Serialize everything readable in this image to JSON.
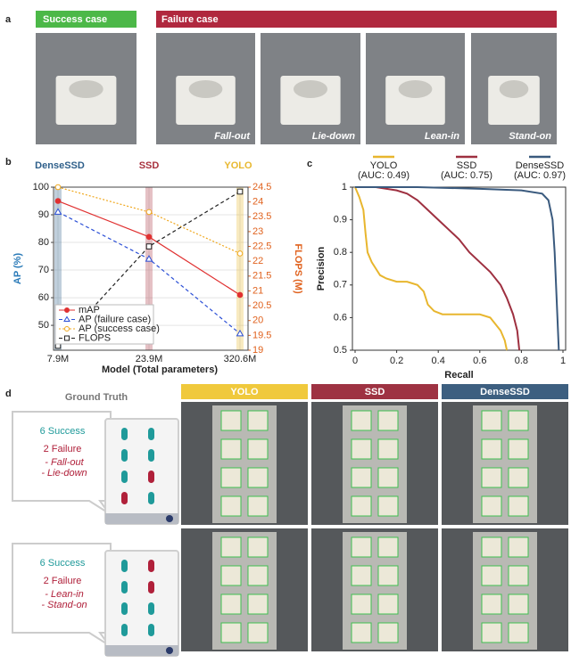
{
  "panel_a": {
    "label": "a",
    "success_label": "Success case",
    "failure_label": "Failure case",
    "captions": [
      "Fall-out",
      "Lie-down",
      "Lean-in",
      "Stand-on"
    ]
  },
  "panel_b_label": "b",
  "panel_c_label": "c",
  "chart_data": [
    {
      "type": "line",
      "xlabel": "Model (Total parameters)",
      "ylabel": "AP (%)",
      "ylabel_color": "#2a7ab8",
      "y2label": "FLOPS (M)",
      "y2label_color": "#e0621e",
      "categories": [
        "7.9M",
        "23.9M",
        "320.6M"
      ],
      "ylim": [
        41,
        100
      ],
      "yticks": [
        50,
        60,
        70,
        80,
        90,
        100
      ],
      "y2lim": [
        19,
        24.5
      ],
      "y2ticks": [
        19,
        19.5,
        20,
        20.5,
        21,
        21.5,
        22,
        22.5,
        23,
        23.5,
        24,
        24.5
      ],
      "grid": true,
      "legend": "lower left",
      "column_labels": [
        {
          "text": "DenseSSD",
          "color": "#2e5f8a"
        },
        {
          "text": "SSD",
          "color": "#a8323e"
        },
        {
          "text": "YOLO",
          "color": "#e8b830"
        }
      ],
      "series": [
        {
          "name": "mAP",
          "color": "#e03131",
          "marker": "circle",
          "dash": "solid",
          "values": [
            95,
            82,
            61
          ]
        },
        {
          "name": "AP (failure case)",
          "color": "#2b4fd6",
          "marker": "triangle",
          "dash": "dashed",
          "values": [
            91,
            74,
            47
          ]
        },
        {
          "name": "AP (success case)",
          "color": "#f0a81e",
          "marker": "circle-open",
          "dash": "dotted",
          "values": [
            100,
            91,
            76
          ]
        },
        {
          "name": "FLOPS",
          "color": "#222222",
          "marker": "square-open",
          "dash": "dashed",
          "axis": "y2",
          "values": [
            19.15,
            22.5,
            24.35
          ]
        }
      ]
    },
    {
      "type": "line",
      "xlabel": "Recall",
      "ylabel": "Precision",
      "xlim": [
        0,
        1
      ],
      "xticks": [
        0,
        0.2,
        0.4,
        0.6,
        0.8,
        1
      ],
      "ylim": [
        0.5,
        1
      ],
      "yticks": [
        0.5,
        0.6,
        0.7,
        0.8,
        0.9,
        1
      ],
      "legend": "top",
      "series": [
        {
          "name": "YOLO",
          "note": "(AUC: 0.49)",
          "color": "#e8b62e",
          "x": [
            0,
            0.02,
            0.04,
            0.05,
            0.06,
            0.08,
            0.1,
            0.12,
            0.15,
            0.2,
            0.25,
            0.3,
            0.33,
            0.35,
            0.38,
            0.42,
            0.5,
            0.6,
            0.65,
            0.7,
            0.72,
            0.73
          ],
          "values": [
            1,
            0.97,
            0.93,
            0.86,
            0.8,
            0.77,
            0.75,
            0.73,
            0.72,
            0.71,
            0.71,
            0.7,
            0.68,
            0.64,
            0.62,
            0.61,
            0.61,
            0.61,
            0.6,
            0.56,
            0.53,
            0.5
          ]
        },
        {
          "name": "SSD",
          "note": "(AUC: 0.75)",
          "color": "#9e3040",
          "x": [
            0,
            0.1,
            0.2,
            0.25,
            0.3,
            0.35,
            0.4,
            0.45,
            0.5,
            0.55,
            0.6,
            0.65,
            0.7,
            0.73,
            0.76,
            0.78,
            0.79
          ],
          "values": [
            1,
            1,
            0.99,
            0.98,
            0.96,
            0.93,
            0.9,
            0.87,
            0.84,
            0.8,
            0.77,
            0.74,
            0.7,
            0.66,
            0.61,
            0.56,
            0.5
          ]
        },
        {
          "name": "DenseSSD",
          "note": "(AUC: 0.97)",
          "color": "#3a5a7e",
          "x": [
            0,
            0.3,
            0.6,
            0.8,
            0.9,
            0.93,
            0.95,
            0.96,
            0.97,
            0.98
          ],
          "values": [
            1,
            1,
            0.995,
            0.99,
            0.98,
            0.96,
            0.9,
            0.8,
            0.65,
            0.5
          ]
        }
      ]
    }
  ],
  "panel_d": {
    "label": "d",
    "ground_truth": "Ground Truth",
    "models": [
      {
        "name": "YOLO",
        "color": "#f0c93c"
      },
      {
        "name": "SSD",
        "color": "#9e3242"
      },
      {
        "name": "DenseSSD",
        "color": "#3d5f80"
      }
    ],
    "cases": [
      {
        "success": "6 Success",
        "failure": "2 Failure",
        "types": [
          "- Fall-out",
          "- Lie-down"
        ]
      },
      {
        "success": "6 Success",
        "failure": "2 Failure",
        "types": [
          "- Lean-in",
          "- Stand-on"
        ]
      }
    ]
  }
}
